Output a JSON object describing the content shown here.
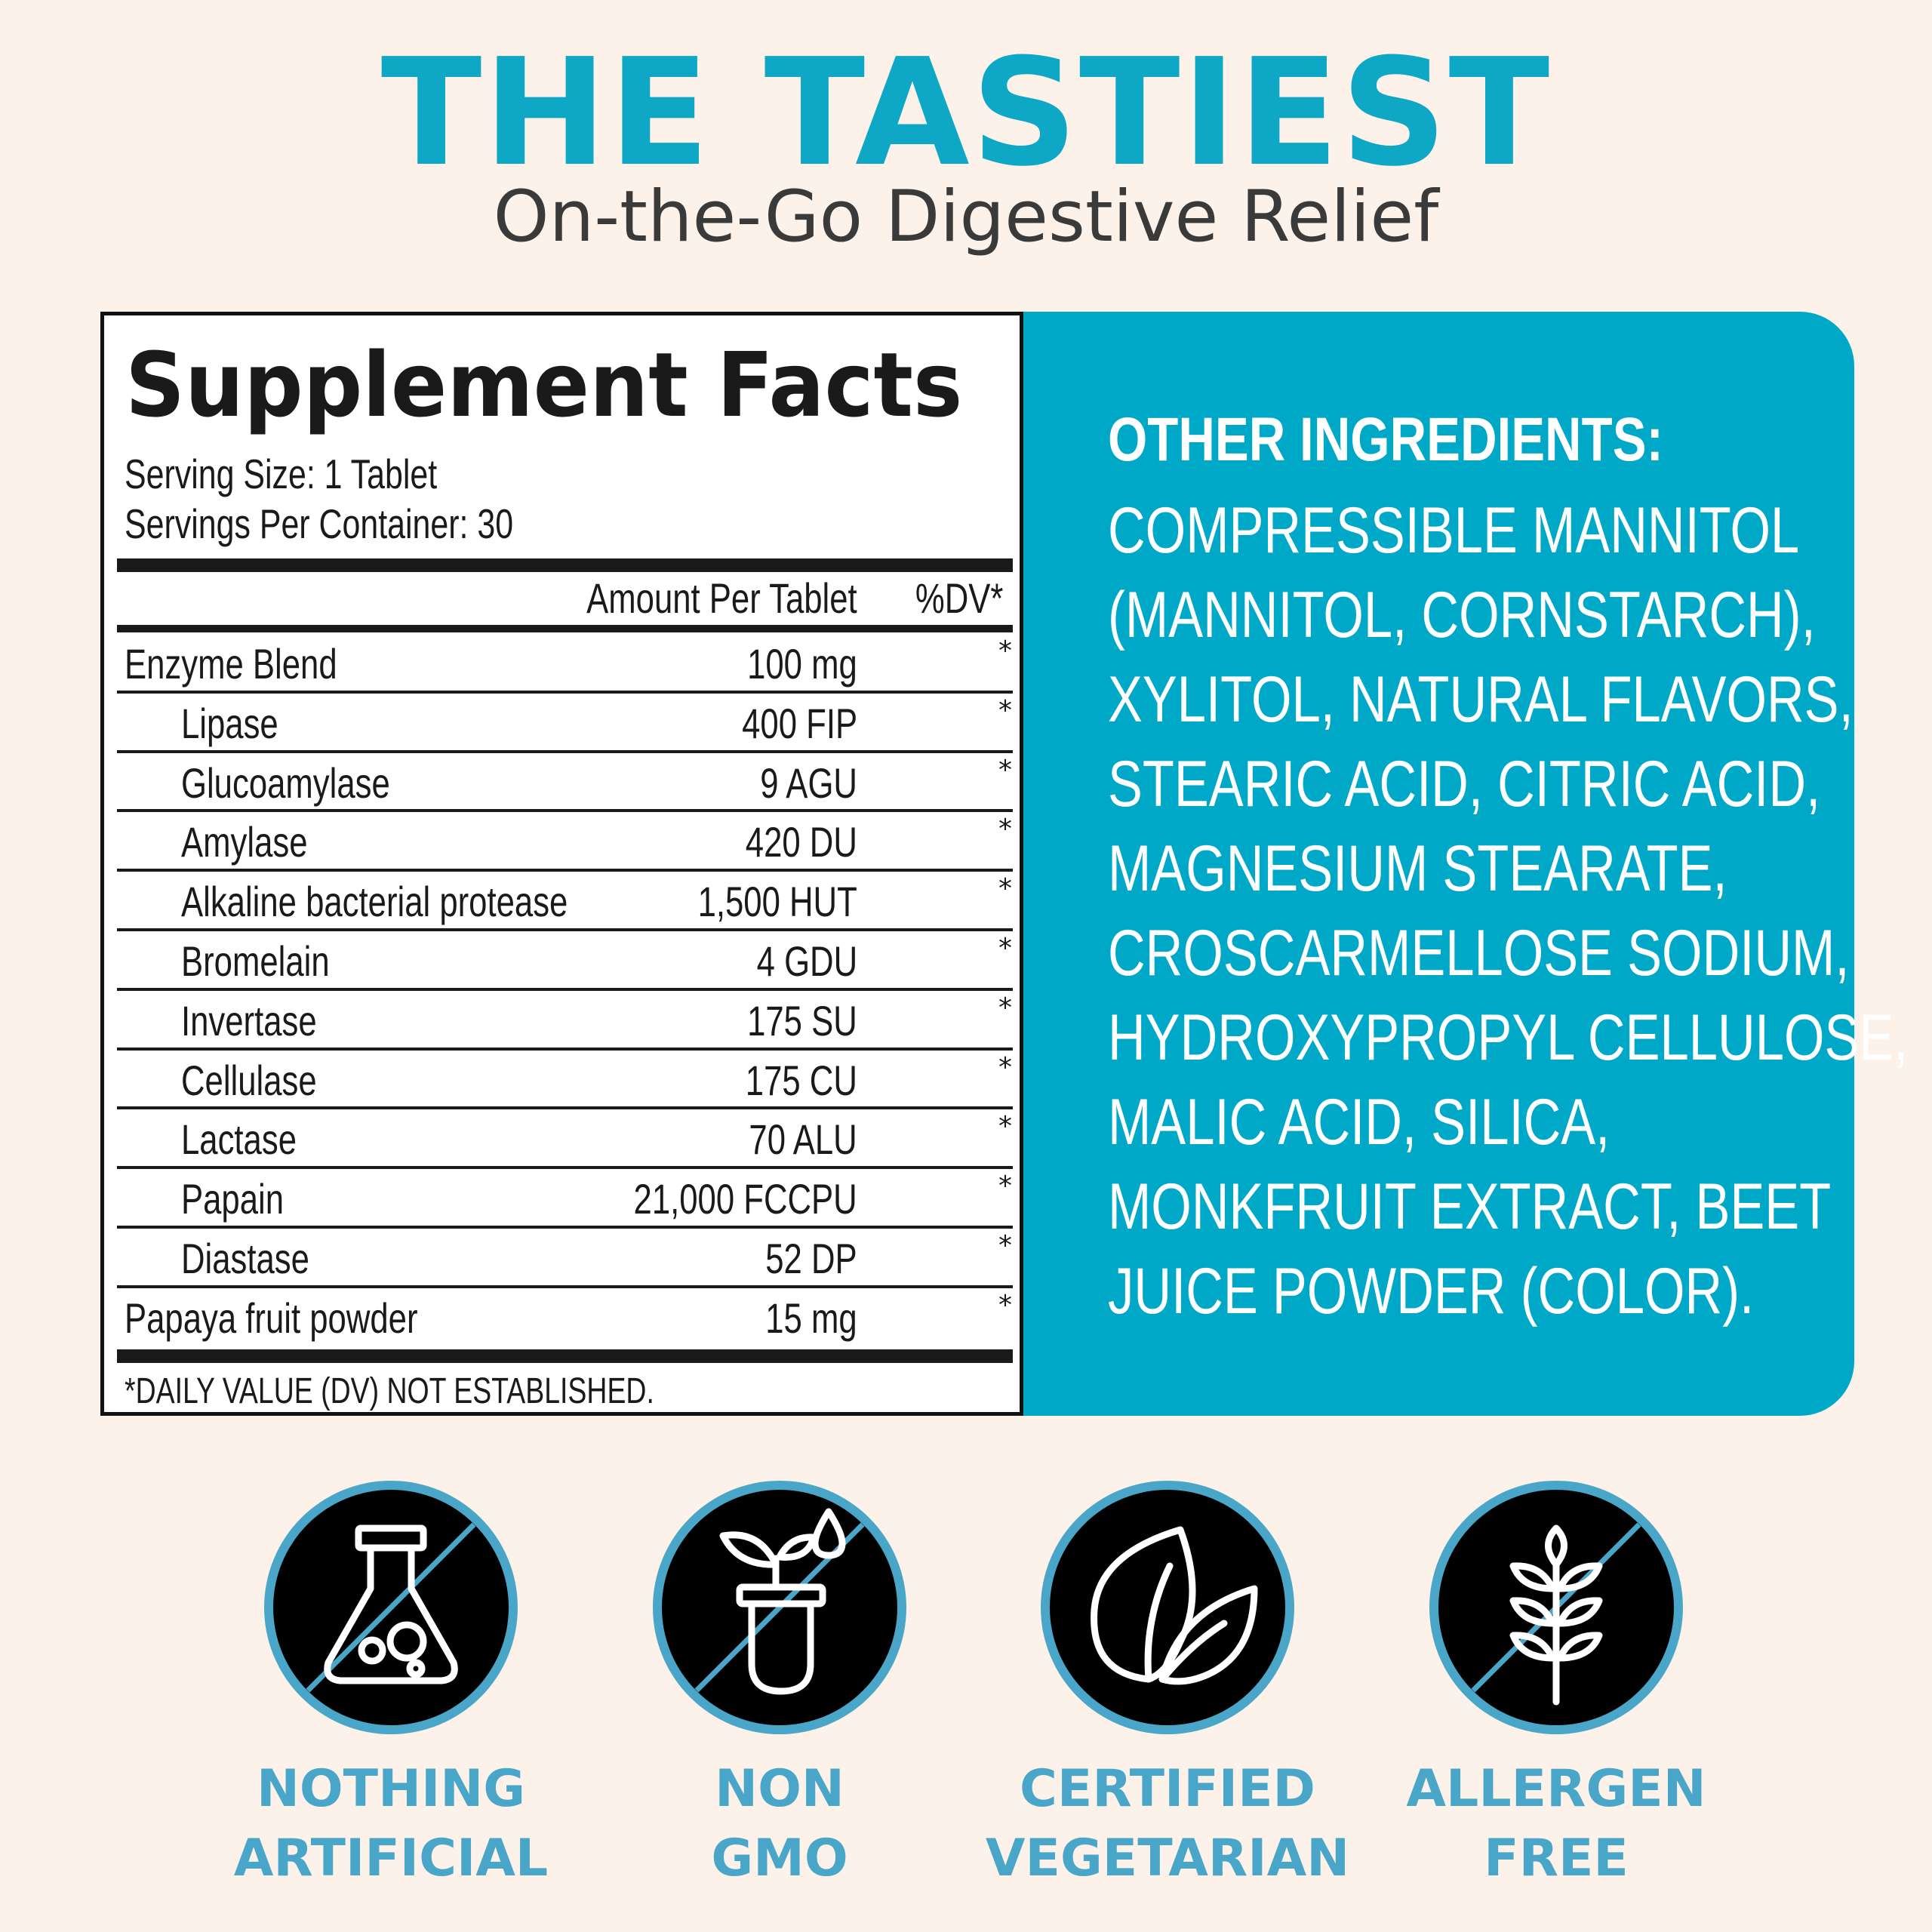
{
  "header": {
    "title": "THE TASTIEST",
    "subtitle": "On-the-Go Digestive Relief"
  },
  "facts": {
    "title": "Supplement Facts",
    "serving_size": "Serving Size: 1 Tablet",
    "servings_per_container": "Servings Per Container: 30",
    "column_amount": "Amount Per Tablet",
    "column_dv": "%DV*",
    "rows": [
      {
        "name": "Enzyme Blend",
        "amount": "100 mg",
        "dv": "*"
      },
      {
        "name": "Lipase",
        "amount": "400 FIP",
        "dv": "*"
      },
      {
        "name": "Glucoamylase",
        "amount": "9 AGU",
        "dv": "*"
      },
      {
        "name": "Amylase",
        "amount": "420 DU",
        "dv": "*"
      },
      {
        "name": "Alkaline bacterial protease",
        "amount": "1,500 HUT",
        "dv": "*"
      },
      {
        "name": "Bromelain",
        "amount": "4 GDU",
        "dv": "*"
      },
      {
        "name": "Invertase",
        "amount": "175 SU",
        "dv": "*"
      },
      {
        "name": "Cellulase",
        "amount": "175 CU",
        "dv": "*"
      },
      {
        "name": "Lactase",
        "amount": "70 ALU",
        "dv": "*"
      },
      {
        "name": "Papain",
        "amount": "21,000 FCCPU",
        "dv": "*"
      },
      {
        "name": "Diastase",
        "amount": "52 DP",
        "dv": "*"
      },
      {
        "name": "Papaya fruit powder",
        "amount": "15 mg",
        "dv": "*"
      }
    ],
    "footnote": "*DAILY VALUE (DV) NOT ESTABLISHED."
  },
  "other_ingredients": {
    "heading": "OTHER INGREDIENTS:",
    "lines": [
      "COMPRESSIBLE MANNITOL",
      "(MANNITOL, CORNSTARCH),",
      "XYLITOL, NATURAL FLAVORS,",
      "STEARIC ACID, CITRIC ACID,",
      "MAGNESIUM STEARATE,",
      "CROSCARMELLOSE SODIUM,",
      "HYDROXYPROPYL CELLULOSE,",
      "MALIC ACID, SILICA,",
      "MONKFRUIT EXTRACT, BEET",
      "JUICE POWDER (COLOR)."
    ]
  },
  "badges": [
    {
      "icon": "flask-icon",
      "line1": "NOTHING",
      "line2": "ARTIFICIAL"
    },
    {
      "icon": "plant-test-tube-icon",
      "line1": "NON",
      "line2": "GMO"
    },
    {
      "icon": "leaves-icon",
      "line1": "CERTIFIED",
      "line2": "VEGETARIAN"
    },
    {
      "icon": "wheat-icon",
      "line1": "ALLERGEN",
      "line2": "FREE"
    }
  ],
  "colors": {
    "background": "#fcf2ea",
    "accent_teal": "#00a8c8",
    "title_teal": "#0ea8c6",
    "badge_label": "#4aa6c8",
    "badge_ring": "#4aa6c8"
  }
}
